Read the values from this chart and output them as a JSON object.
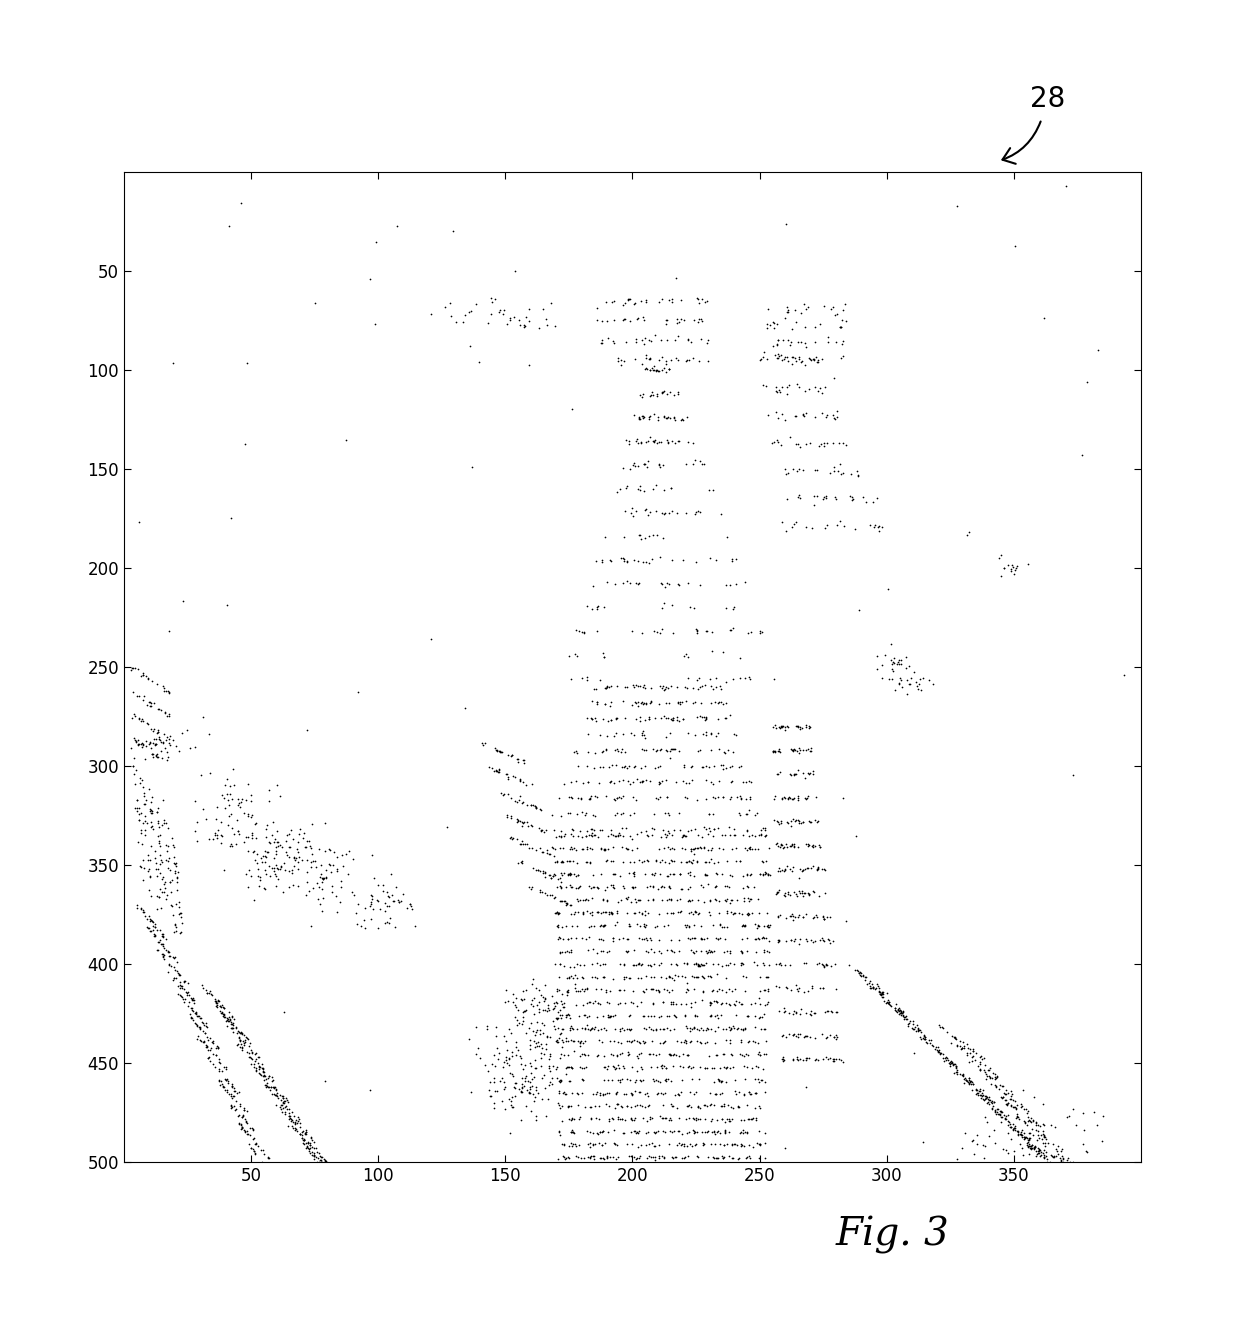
{
  "xlim": [
    0,
    400
  ],
  "ylim": [
    0,
    500
  ],
  "xticks": [
    50,
    100,
    150,
    200,
    250,
    300,
    350
  ],
  "yticks": [
    50,
    100,
    150,
    200,
    250,
    300,
    350,
    400,
    450,
    500
  ],
  "background_color": "#ffffff",
  "point_color": "#000000",
  "point_size": 1.5,
  "seed": 42,
  "fig_label": "Fig. 3",
  "label_28": "28",
  "figsize": [
    12.4,
    13.21
  ],
  "dpi": 100
}
